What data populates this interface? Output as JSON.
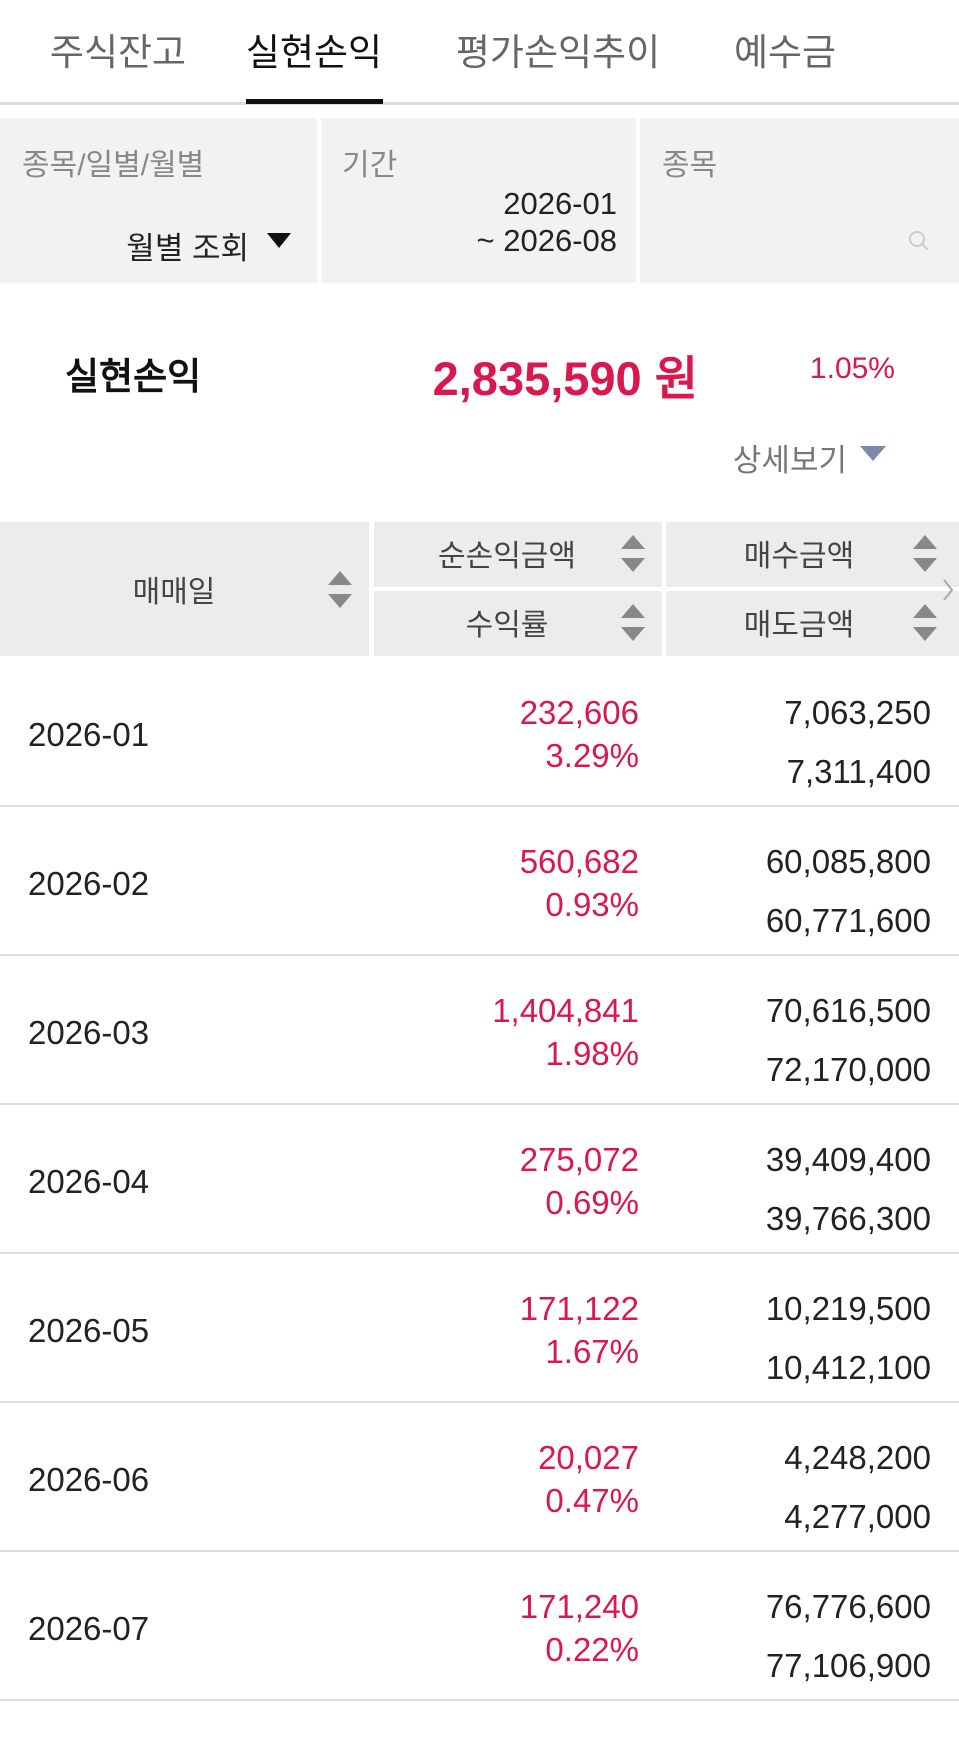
{
  "tabs": [
    "주식잔고",
    "실현손익",
    "평가손익추이",
    "예수금"
  ],
  "filters": {
    "type_label": "종목/일별/월별",
    "type_value": "월별 조회",
    "period_label": "기간",
    "period_start": "2026-01",
    "period_end": "~ 2026-08",
    "stock_label": "종목"
  },
  "summary": {
    "label": "실현손익",
    "amount": "2,835,590 원",
    "rate": "1.05%",
    "detail": "상세보기"
  },
  "table": {
    "headers": {
      "date": "매매일",
      "profit": "순손익금액",
      "rate": "수익률",
      "buy": "매수금액",
      "sell": "매도금액"
    },
    "rows": [
      [
        "2026-01",
        "232,606",
        "3.29%",
        "7,063,250",
        "7,311,400"
      ],
      [
        "2026-02",
        "560,682",
        "0.93%",
        "60,085,800",
        "60,771,600"
      ],
      [
        "2026-03",
        "1,404,841",
        "1.98%",
        "70,616,500",
        "72,170,000"
      ],
      [
        "2026-04",
        "275,072",
        "0.69%",
        "39,409,400",
        "39,766,300"
      ],
      [
        "2026-05",
        "171,122",
        "1.67%",
        "10,219,500",
        "10,412,100"
      ],
      [
        "2026-06",
        "20,027",
        "0.47%",
        "4,248,200",
        "4,277,000"
      ],
      [
        "2026-07",
        "171,240",
        "0.22%",
        "76,776,600",
        "77,106,900"
      ]
    ]
  }
}
